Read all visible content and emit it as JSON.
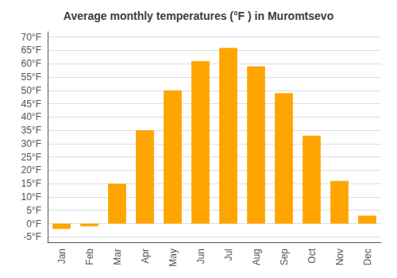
{
  "chart_data": {
    "type": "bar",
    "title": "Average monthly temperatures (°F ) in Muromtsevo",
    "categories": [
      "Jan",
      "Feb",
      "Mar",
      "Apr",
      "May",
      "Jun",
      "Jul",
      "Aug",
      "Sep",
      "Oct",
      "Nov",
      "Dec"
    ],
    "values": [
      -2,
      -1,
      15,
      35,
      50,
      61,
      66,
      59,
      49,
      33,
      16,
      3
    ],
    "color": "#FFA500",
    "ylim": [
      -7,
      72
    ],
    "yticks": [
      {
        "value": -5,
        "label": "-5°F"
      },
      {
        "value": 0,
        "label": "0°F"
      },
      {
        "value": 5,
        "label": "5°F"
      },
      {
        "value": 10,
        "label": "10°F"
      },
      {
        "value": 15,
        "label": "15°F"
      },
      {
        "value": 20,
        "label": "20°F"
      },
      {
        "value": 25,
        "label": "25°F"
      },
      {
        "value": 30,
        "label": "30°F"
      },
      {
        "value": 35,
        "label": "35°F"
      },
      {
        "value": 40,
        "label": "40°F"
      },
      {
        "value": 45,
        "label": "45°F"
      },
      {
        "value": 50,
        "label": "50°F"
      },
      {
        "value": 55,
        "label": "55°F"
      },
      {
        "value": 60,
        "label": "60°F"
      },
      {
        "value": 65,
        "label": "65°F"
      },
      {
        "value": 70,
        "label": "70°F"
      }
    ],
    "grid": true
  }
}
